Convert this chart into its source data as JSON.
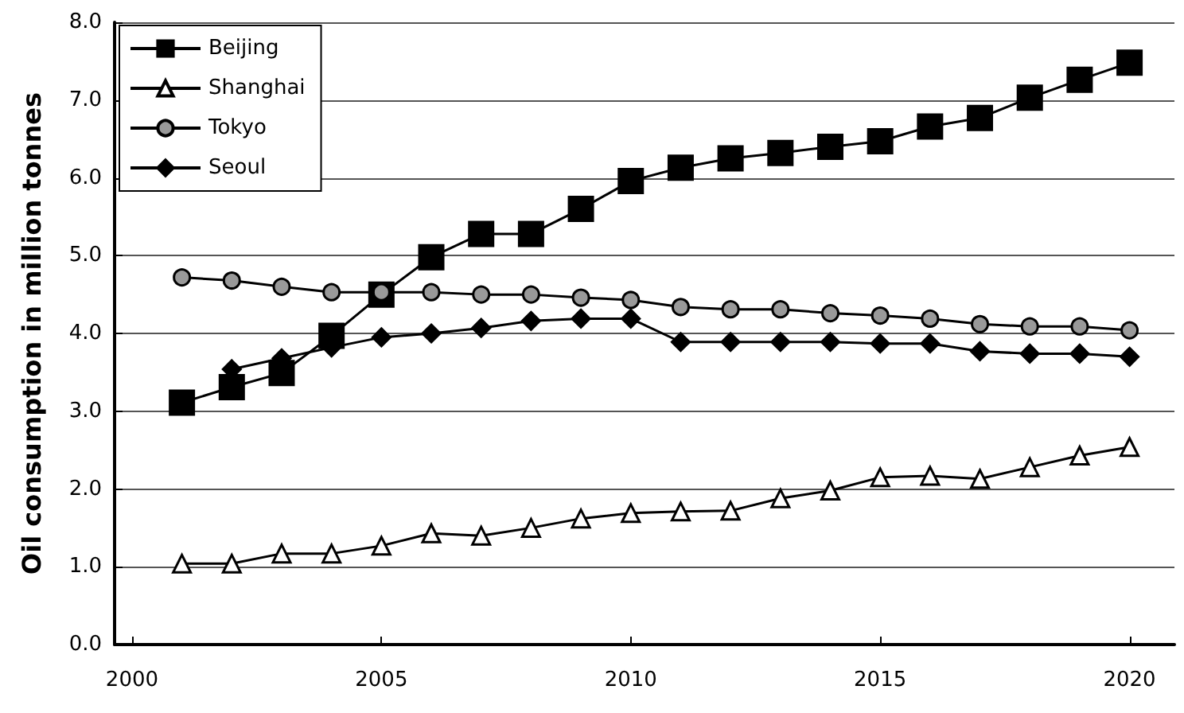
{
  "chart_data": {
    "type": "line",
    "ylabel": "Oil consumption in million tonnes",
    "xlim": [
      1999.65,
      2020.9
    ],
    "xticks": [
      2000,
      2005,
      2010,
      2015,
      2020
    ],
    "ylim": [
      0,
      8
    ],
    "yticks": [
      {
        "value": 0,
        "label": "0.0"
      },
      {
        "value": 1,
        "label": "1.0"
      },
      {
        "value": 2,
        "label": "2.0"
      },
      {
        "value": 3,
        "label": "3.0"
      },
      {
        "value": 4,
        "label": "4.0"
      },
      {
        "value": 5,
        "label": "5.0"
      },
      {
        "value": 6,
        "label": "6.0"
      },
      {
        "value": 7,
        "label": "7.0"
      },
      {
        "value": 8,
        "label": "8.0"
      }
    ],
    "grid": "y",
    "legend": "top left",
    "line_style": "solid",
    "series": [
      {
        "name": "Beijing",
        "color": "#000000",
        "marker": "square",
        "x": [
          2001,
          2002,
          2003,
          2004,
          2005,
          2006,
          2007,
          2008,
          2009,
          2010,
          2011,
          2012,
          2013,
          2014,
          2015,
          2016,
          2017,
          2018,
          2019,
          2020
        ],
        "values": [
          3.11,
          3.31,
          3.49,
          3.97,
          4.5,
          4.98,
          5.28,
          5.28,
          5.6,
          5.96,
          6.13,
          6.25,
          6.32,
          6.4,
          6.47,
          6.66,
          6.77,
          7.03,
          7.26,
          7.48
        ]
      },
      {
        "name": "Shanghai",
        "color": "#ffffff",
        "marker": "triangle",
        "x": [
          2001,
          2002,
          2003,
          2004,
          2005,
          2006,
          2007,
          2008,
          2009,
          2010,
          2011,
          2012,
          2013,
          2014,
          2015,
          2016,
          2017,
          2018,
          2019,
          2020
        ],
        "values": [
          1.04,
          1.04,
          1.17,
          1.17,
          1.27,
          1.43,
          1.4,
          1.5,
          1.62,
          1.69,
          1.71,
          1.72,
          1.88,
          1.98,
          2.15,
          2.17,
          2.13,
          2.28,
          2.43,
          2.54
        ]
      },
      {
        "name": "Tokyo",
        "color": "#999999",
        "marker": "circle",
        "x": [
          2001,
          2002,
          2003,
          2004,
          2005,
          2006,
          2007,
          2008,
          2009,
          2010,
          2011,
          2012,
          2013,
          2014,
          2015,
          2016,
          2017,
          2018,
          2019,
          2020
        ],
        "values": [
          4.72,
          4.68,
          4.6,
          4.53,
          4.53,
          4.53,
          4.5,
          4.5,
          4.46,
          4.43,
          4.34,
          4.31,
          4.31,
          4.26,
          4.23,
          4.19,
          4.12,
          4.09,
          4.09,
          4.04
        ]
      },
      {
        "name": "Seoul",
        "color": "#000000",
        "marker": "diamond",
        "x": [
          2002,
          2003,
          2004,
          2005,
          2006,
          2007,
          2008,
          2009,
          2010,
          2011,
          2012,
          2013,
          2014,
          2015,
          2016,
          2017,
          2018,
          2019,
          2020
        ],
        "values": [
          3.54,
          3.68,
          3.82,
          3.95,
          4.0,
          4.07,
          4.16,
          4.19,
          4.19,
          3.89,
          3.89,
          3.89,
          3.89,
          3.87,
          3.87,
          3.77,
          3.74,
          3.74,
          3.7
        ]
      }
    ]
  }
}
